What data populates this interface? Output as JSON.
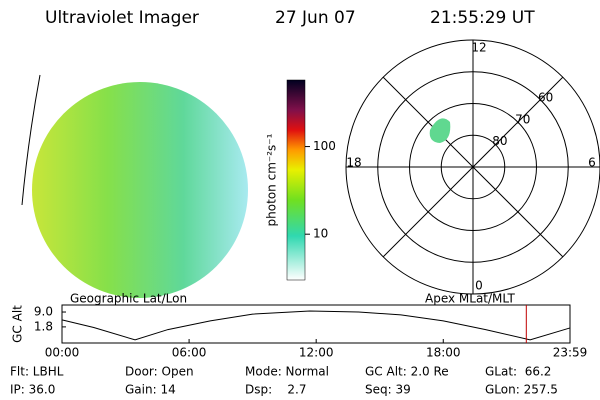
{
  "header": {
    "instrument": "Ultraviolet Imager",
    "date": "27 Jun 07",
    "time": "21:55:29 UT"
  },
  "colorbar": {
    "label": "photon cm⁻²s⁻¹",
    "scale": "log",
    "lim": [
      3,
      575
    ],
    "ticks": [
      10,
      100
    ]
  },
  "polar": {
    "lat_min": 50,
    "lat_rings": [
      80,
      70,
      60
    ],
    "mlt_ticks": [
      12,
      18,
      6,
      0
    ]
  },
  "timeline": {
    "left_label": "Geographic Lat/Lon",
    "right_label": "Apex MLat/MLT",
    "ylabel": "GC Alt",
    "xlim": [
      0,
      23.983
    ],
    "ylim": [
      -6,
      12.4
    ],
    "xticks": [
      {
        "value": 0,
        "label": "00:00"
      },
      {
        "value": 6,
        "label": "06:00"
      },
      {
        "value": 12,
        "label": "12:00"
      },
      {
        "value": 18,
        "label": "18:00"
      },
      {
        "value": 23.983,
        "label": "23:59"
      }
    ],
    "yticks": [
      {
        "value": 9,
        "label": "9.0"
      },
      {
        "value": 1.8,
        "label": "1.8"
      }
    ],
    "x": [
      0,
      1.5,
      3.45,
      5,
      7,
      9,
      11.7,
      14,
      16,
      18,
      20,
      22.1,
      23.983
    ],
    "values": [
      5.2,
      1.5,
      -4.5,
      0.5,
      4.7,
      8,
      9.5,
      9,
      7.6,
      4.7,
      0.5,
      -4.5,
      1.3
    ],
    "current_time": 21.92,
    "current_color": "#c00000"
  },
  "info": {
    "rows": [
      [
        "Flt: LBHL",
        "Door: Open",
        "Mode: Normal",
        "GC Alt: 2.0 Re",
        "GLat:  66.2"
      ],
      [
        "IP: 36.0",
        "Gain: 14",
        "Dsp:    2.7",
        "Seq: 39",
        "GLon: 257.5"
      ]
    ]
  }
}
